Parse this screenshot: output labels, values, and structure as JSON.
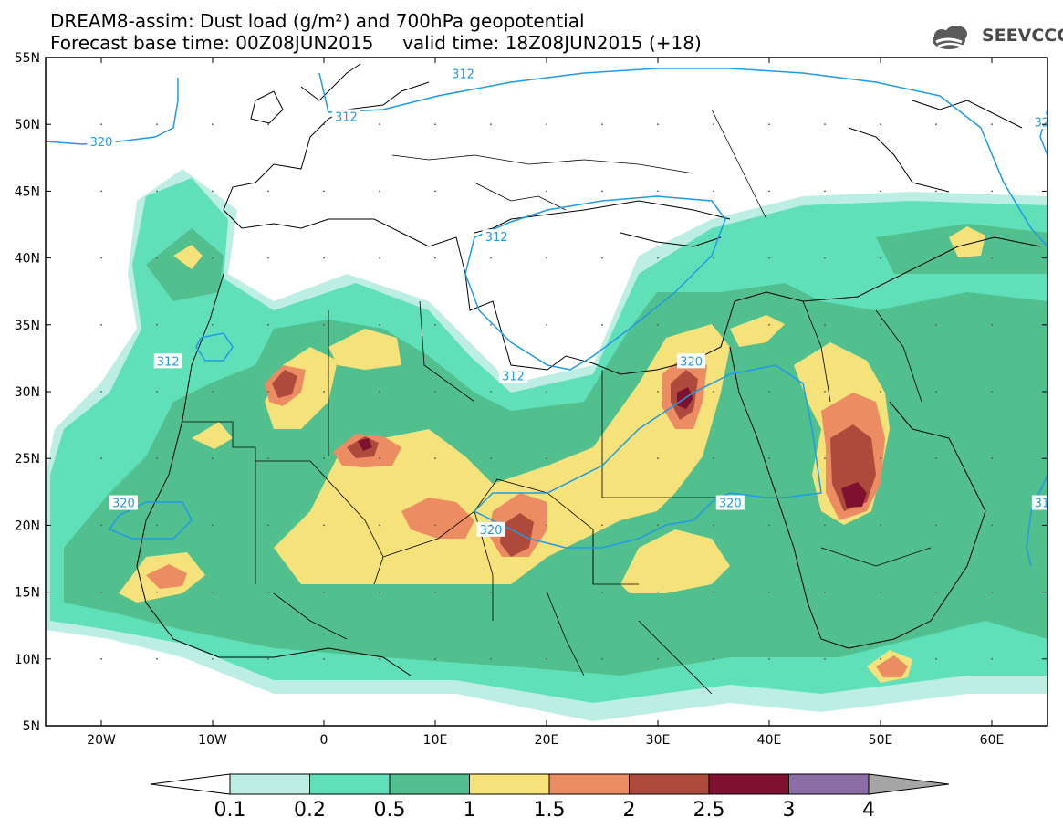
{
  "title": {
    "line1": "DREAM8-assim: Dust load (g/m²) and 700hPa geopotential",
    "line2": "Forecast base time: 00Z08JUN2015     valid time: 18Z08JUN2015 (+18)"
  },
  "logo": {
    "text": "SEEVCCC",
    "icon": "cloud-icon"
  },
  "map": {
    "lat_labels": [
      "55N",
      "50N",
      "45N",
      "40N",
      "35N",
      "30N",
      "25N",
      "20N",
      "15N",
      "10N",
      "5N"
    ],
    "lon_labels": [
      "20W",
      "10W",
      "0",
      "10E",
      "20E",
      "30E",
      "40E",
      "50E",
      "60E"
    ],
    "lon_range": [
      -25,
      65
    ],
    "lat_range": [
      5,
      55
    ]
  },
  "contours": [
    {
      "value": "312",
      "color": "#1f9be6"
    },
    {
      "value": "320",
      "color": "#1f9be6"
    }
  ],
  "contour_labels": [
    {
      "text": "312",
      "lon": 12.5,
      "lat": 53.8
    },
    {
      "text": "312",
      "lon": 2.0,
      "lat": 50.6
    },
    {
      "text": "312",
      "lon": 15.5,
      "lat": 41.6
    },
    {
      "text": "312",
      "lon": -14.0,
      "lat": 32.3
    },
    {
      "text": "312",
      "lon": 17.0,
      "lat": 31.2
    },
    {
      "text": "320",
      "lon": -20.0,
      "lat": 48.7
    },
    {
      "text": "320",
      "lon": 33.0,
      "lat": 32.3
    },
    {
      "text": "320",
      "lon": -18.0,
      "lat": 21.7
    },
    {
      "text": "320",
      "lon": 15.0,
      "lat": 19.7
    },
    {
      "text": "320",
      "lon": 36.5,
      "lat": 21.7
    },
    {
      "text": "31",
      "lon": 64.5,
      "lat": 21.7
    },
    {
      "text": "32",
      "lon": 64.5,
      "lat": 50.2
    }
  ],
  "colorbar": {
    "labels": [
      "0.1",
      "0.2",
      "0.5",
      "1",
      "1.5",
      "2",
      "2.5",
      "3",
      "4"
    ],
    "colors": [
      "#ffffff",
      "#bdeee4",
      "#5fe0b9",
      "#52bf8f",
      "#f6e27a",
      "#eb8c62",
      "#ad4a3c",
      "#7e1030",
      "#8c6ea6",
      "#a6a6a6"
    ]
  }
}
